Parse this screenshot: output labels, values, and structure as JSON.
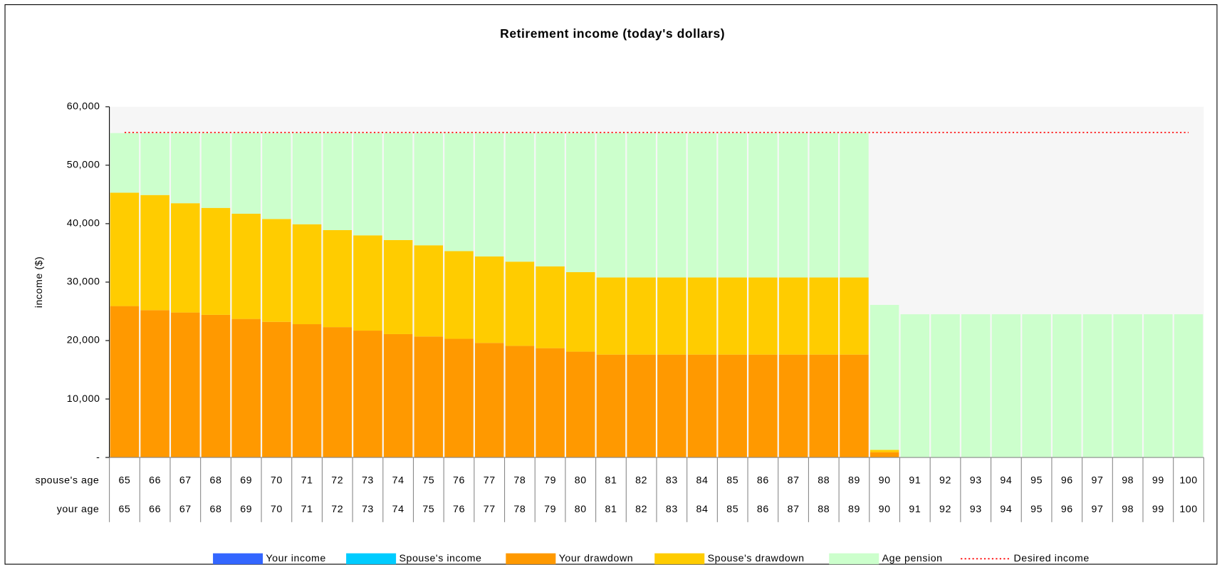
{
  "chart_data": {
    "type": "stacked_bar",
    "title": "Retirement income (today's dollars)",
    "y_label": "income ($)",
    "row_labels": [
      "spouse's age",
      "your age"
    ],
    "spouse_ages": [
      "65",
      "66",
      "67",
      "68",
      "69",
      "70",
      "71",
      "72",
      "73",
      "74",
      "75",
      "76",
      "77",
      "78",
      "79",
      "80",
      "81",
      "82",
      "83",
      "84",
      "85",
      "86",
      "87",
      "88",
      "89",
      "90",
      "91",
      "92",
      "93",
      "94",
      "95",
      "96",
      "97",
      "98",
      "99",
      "100"
    ],
    "categories": [
      "65",
      "66",
      "67",
      "68",
      "69",
      "70",
      "71",
      "72",
      "73",
      "74",
      "75",
      "76",
      "77",
      "78",
      "79",
      "80",
      "81",
      "82",
      "83",
      "84",
      "85",
      "86",
      "87",
      "88",
      "89",
      "90",
      "91",
      "92",
      "93",
      "94",
      "95",
      "96",
      "97",
      "98",
      "99",
      "100"
    ],
    "ylim": [
      0,
      60000
    ],
    "yticks": [
      {
        "value": 0,
        "label": "-"
      },
      {
        "value": 10000,
        "label": "10,000"
      },
      {
        "value": 20000,
        "label": "20,000"
      },
      {
        "value": 30000,
        "label": "30,000"
      },
      {
        "value": 40000,
        "label": "40,000"
      },
      {
        "value": 50000,
        "label": "50,000"
      },
      {
        "value": 60000,
        "label": "60,000"
      }
    ],
    "legend": "bottom",
    "series": [
      {
        "name": "Your income",
        "color": "#3366ff",
        "values": [
          0,
          0,
          0,
          0,
          0,
          0,
          0,
          0,
          0,
          0,
          0,
          0,
          0,
          0,
          0,
          0,
          0,
          0,
          0,
          0,
          0,
          0,
          0,
          0,
          0,
          0,
          0,
          0,
          0,
          0,
          0,
          0,
          0,
          0,
          0,
          0
        ]
      },
      {
        "name": "Spouse's income",
        "color": "#00ccff",
        "values": [
          0,
          0,
          0,
          0,
          0,
          0,
          0,
          0,
          0,
          0,
          0,
          0,
          0,
          0,
          0,
          0,
          0,
          0,
          0,
          0,
          0,
          0,
          0,
          0,
          0,
          0,
          0,
          0,
          0,
          0,
          0,
          0,
          0,
          0,
          0,
          0
        ]
      },
      {
        "name": "Your drawdown",
        "color": "#ff9900",
        "values": [
          25900,
          25200,
          24800,
          24400,
          23700,
          23200,
          22800,
          22300,
          21700,
          21100,
          20700,
          20300,
          19600,
          19100,
          18700,
          18100,
          17600,
          17600,
          17600,
          17600,
          17600,
          17600,
          17600,
          17600,
          17600,
          900,
          0,
          0,
          0,
          0,
          0,
          0,
          0,
          0,
          0,
          0
        ]
      },
      {
        "name": "Spouse's drawdown",
        "color": "#ffcc00",
        "values": [
          19400,
          19700,
          18700,
          18300,
          18000,
          17600,
          17100,
          16600,
          16300,
          16100,
          15600,
          15000,
          14800,
          14400,
          14000,
          13600,
          13200,
          13200,
          13200,
          13200,
          13200,
          13200,
          13200,
          13200,
          13200,
          400,
          0,
          0,
          0,
          0,
          0,
          0,
          0,
          0,
          0,
          0
        ]
      },
      {
        "name": "Age pension",
        "color": "#ccffcc",
        "values": [
          10200,
          10600,
          12000,
          12800,
          13800,
          14700,
          15600,
          16600,
          17500,
          18300,
          19200,
          20200,
          21100,
          22000,
          22800,
          23800,
          24700,
          24700,
          24700,
          24700,
          24700,
          24700,
          24700,
          24700,
          24700,
          24800,
          24500,
          24500,
          24500,
          24500,
          24500,
          24500,
          24500,
          24500,
          24500,
          24500
        ]
      },
      {
        "name": "Desired income",
        "color": "#ff0000",
        "kind": "line",
        "values": [
          55600,
          55600,
          55600,
          55600,
          55600,
          55600,
          55600,
          55600,
          55600,
          55600,
          55600,
          55600,
          55600,
          55600,
          55600,
          55600,
          55600,
          55600,
          55600,
          55600,
          55600,
          55600,
          55600,
          55600,
          55600,
          55600,
          55600,
          55600,
          55600,
          55600,
          55600,
          55600,
          55600,
          55600,
          55600,
          55600
        ]
      }
    ]
  }
}
